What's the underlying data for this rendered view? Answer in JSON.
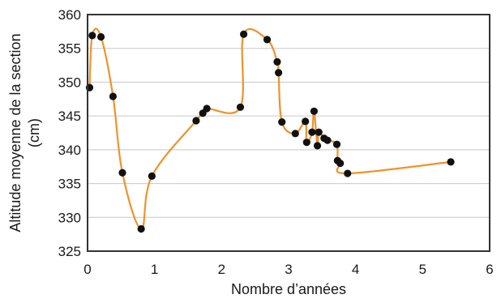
{
  "chart_data": {
    "type": "scatter",
    "title": "",
    "xlabel": "Nombre d’années",
    "ylabel_lines": [
      "Altitude moyenne de la section",
      "(cm)"
    ],
    "xlim": [
      0,
      6
    ],
    "ylim": [
      325,
      360
    ],
    "xticks": [
      0,
      1,
      2,
      3,
      4,
      5,
      6
    ],
    "yticks": [
      325,
      330,
      335,
      340,
      345,
      350,
      355,
      360
    ],
    "grid": "horizontal",
    "legend": "none",
    "colors": {
      "line": "#f0922b",
      "points": "#111111",
      "grid": "#c8c8c8",
      "frame": "#333333"
    },
    "points": [
      {
        "x": 0.03,
        "y": 349.2
      },
      {
        "x": 0.07,
        "y": 356.9
      },
      {
        "x": 0.2,
        "y": 356.7
      },
      {
        "x": 0.38,
        "y": 347.9
      },
      {
        "x": 0.52,
        "y": 336.6
      },
      {
        "x": 0.8,
        "y": 328.3
      },
      {
        "x": 0.96,
        "y": 336.1
      },
      {
        "x": 1.62,
        "y": 344.3
      },
      {
        "x": 1.72,
        "y": 345.4
      },
      {
        "x": 1.78,
        "y": 346.1
      },
      {
        "x": 2.28,
        "y": 346.3
      },
      {
        "x": 2.33,
        "y": 357.1
      },
      {
        "x": 2.68,
        "y": 356.3
      },
      {
        "x": 2.83,
        "y": 353.0
      },
      {
        "x": 2.85,
        "y": 351.4
      },
      {
        "x": 2.9,
        "y": 344.1
      },
      {
        "x": 3.1,
        "y": 342.4
      },
      {
        "x": 3.25,
        "y": 344.2
      },
      {
        "x": 3.27,
        "y": 341.1
      },
      {
        "x": 3.35,
        "y": 342.6
      },
      {
        "x": 3.38,
        "y": 345.7
      },
      {
        "x": 3.43,
        "y": 340.6
      },
      {
        "x": 3.45,
        "y": 342.6
      },
      {
        "x": 3.53,
        "y": 341.7
      },
      {
        "x": 3.58,
        "y": 341.4
      },
      {
        "x": 3.72,
        "y": 340.8
      },
      {
        "x": 3.73,
        "y": 338.4
      },
      {
        "x": 3.77,
        "y": 338.0
      },
      {
        "x": 3.88,
        "y": 336.5
      },
      {
        "x": 5.42,
        "y": 338.2
      }
    ]
  }
}
